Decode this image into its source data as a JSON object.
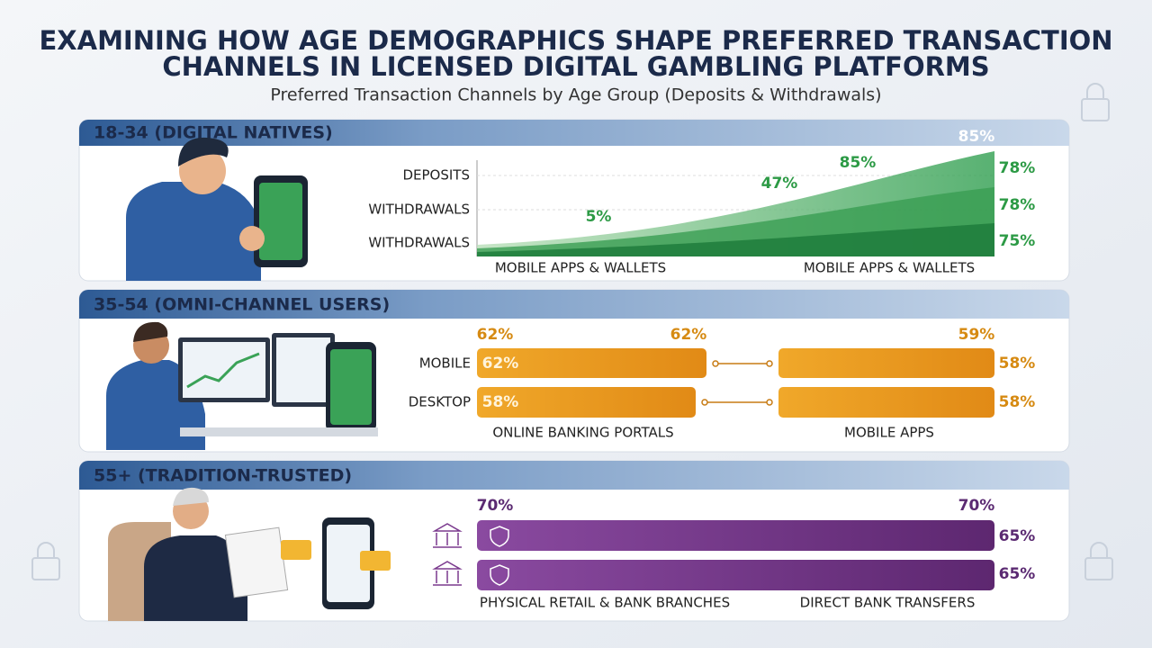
{
  "header": {
    "title_lines": [
      "EXAMINING HOW AGE DEMOGRAPHICS SHAPE PREFERRED TRANSACTION",
      "CHANNELS IN LICENSED DIGITAL GAMBLING PLATFORMS"
    ],
    "subtitle": "Preferred Transaction Channels by Age Group (Deposits & Withdrawals)"
  },
  "panels": [
    {
      "heading": "18-34 (DIGITAL NATIVES)",
      "row_labels": [
        "DEPOSITS",
        "WITHDRAWALS",
        "WITHDRAWALS"
      ],
      "value_labels": [
        "85%",
        "85%",
        "47%",
        "5%",
        "78%",
        "78%",
        "75%"
      ],
      "axis_labels": [
        "MOBILE APPS & WALLETS",
        "MOBILE APPS & WALLETS"
      ]
    },
    {
      "heading": "35-54 (OMNI-CHANNEL USERS)",
      "row_labels": [
        "MOBILE",
        "DESKTOP"
      ],
      "value_labels": [
        "62%",
        "62%",
        "59%",
        "62%",
        "58%",
        "58%",
        "58%"
      ],
      "axis_labels": [
        "ONLINE BANKING PORTALS",
        "MOBILE APPS"
      ]
    },
    {
      "heading": "55+ (TRADITION-TRUSTED)",
      "value_labels": [
        "70%",
        "70%",
        "65%",
        "65%"
      ],
      "axis_labels": [
        "PHYSICAL RETAIL & BANK BRANCHES",
        "DIRECT BANK TRANSFERS"
      ]
    }
  ]
}
